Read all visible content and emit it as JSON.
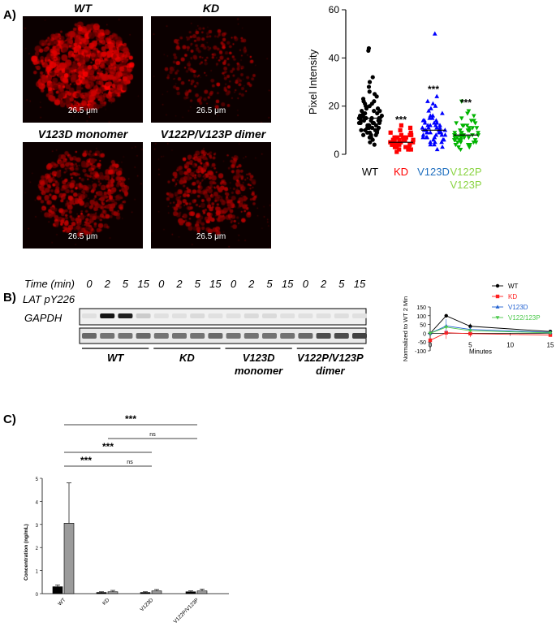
{
  "panelA": {
    "letter": "A)",
    "images": [
      {
        "title": "WT",
        "scale": "26.5 μm",
        "density": 1.0
      },
      {
        "title": "KD",
        "scale": "26.5 μm",
        "density": 0.18
      },
      {
        "title": "V123D monomer",
        "scale": "26.5 μm",
        "density": 0.55
      },
      {
        "title": "V122P/V123P dimer",
        "scale": "26.5 μm",
        "density": 0.45
      }
    ],
    "chart_data": {
      "type": "scatter",
      "ylabel": "Pixel Intensity",
      "ylim": [
        0,
        60
      ],
      "yticks": [
        0,
        20,
        40,
        60
      ],
      "groups": [
        {
          "label": "WT",
          "label2": "",
          "color": "#000000",
          "marker": "circle",
          "mean": 15,
          "sig": "",
          "n": 90,
          "values": [
            44,
            43,
            32,
            30,
            28,
            26,
            25,
            24,
            23,
            22,
            22,
            21,
            21,
            20,
            20,
            19,
            19,
            18,
            18,
            18,
            17,
            17,
            17,
            16,
            16,
            16,
            16,
            15,
            15,
            15,
            15,
            15,
            14,
            14,
            14,
            14,
            14,
            13,
            13,
            13,
            13,
            13,
            12,
            12,
            12,
            12,
            12,
            11,
            11,
            11,
            11,
            10,
            10,
            10,
            10,
            9,
            9,
            9,
            8,
            8,
            8,
            7,
            7,
            6,
            5,
            4
          ]
        },
        {
          "label": "KD",
          "label2": "",
          "color": "#ff0000",
          "marker": "square",
          "mean": 5,
          "sig": "***",
          "n": 80,
          "values": [
            12,
            11,
            10,
            9,
            9,
            8,
            8,
            8,
            7,
            7,
            7,
            7,
            6,
            6,
            6,
            6,
            6,
            6,
            5,
            5,
            5,
            5,
            5,
            5,
            5,
            5,
            5,
            4,
            4,
            4,
            4,
            4,
            4,
            4,
            3,
            3,
            3,
            3,
            3,
            2,
            2,
            2,
            1
          ]
        },
        {
          "label": "V123D",
          "label2": "",
          "color": "#0000ff",
          "marker": "triangle-up",
          "mean": 10,
          "sig": "***",
          "n": 80,
          "values": [
            50,
            24,
            22,
            21,
            20,
            19,
            18,
            17,
            16,
            16,
            15,
            15,
            14,
            14,
            14,
            13,
            13,
            13,
            12,
            12,
            12,
            12,
            11,
            11,
            11,
            11,
            10,
            10,
            10,
            10,
            10,
            9,
            9,
            9,
            9,
            9,
            8,
            8,
            8,
            8,
            7,
            7,
            7,
            7,
            6,
            6,
            6,
            5,
            5,
            5,
            4,
            4,
            3,
            2
          ]
        },
        {
          "label": "V122P",
          "label2": "V123P",
          "color": "#00b400",
          "marker": "triangle-down",
          "mean": 8,
          "sig": "***",
          "n": 80,
          "values": [
            22,
            18,
            17,
            16,
            15,
            14,
            14,
            13,
            13,
            12,
            12,
            12,
            11,
            11,
            11,
            10,
            10,
            10,
            10,
            9,
            9,
            9,
            9,
            8,
            8,
            8,
            8,
            8,
            8,
            7,
            7,
            7,
            7,
            7,
            7,
            6,
            6,
            6,
            6,
            6,
            5,
            5,
            5,
            5,
            4,
            4,
            4,
            3,
            3,
            2
          ]
        }
      ],
      "label_colors": [
        "#000000",
        "#ff0000",
        "#1f6fbf",
        "#8bd443"
      ]
    }
  },
  "panelB": {
    "letter": "B)",
    "time_label": "Time (min)",
    "times": [
      "0",
      "2",
      "5",
      "15",
      "0",
      "2",
      "5",
      "15",
      "0",
      "2",
      "5",
      "15",
      "0",
      "2",
      "5",
      "15"
    ],
    "rows": [
      "LAT pY226",
      "GAPDH"
    ],
    "groups": [
      {
        "line1": "WT",
        "line2": ""
      },
      {
        "line1": "KD",
        "line2": ""
      },
      {
        "line1": "V123D",
        "line2": "monomer"
      },
      {
        "line1": "V122P/V123P",
        "line2": "dimer"
      }
    ],
    "lat_band_intensity": [
      0.05,
      1.0,
      0.95,
      0.15,
      0.05,
      0.05,
      0.08,
      0.05,
      0.05,
      0.08,
      0.08,
      0.05,
      0.05,
      0.05,
      0.06,
      0.05
    ],
    "gapdh_band_intensity": [
      0.6,
      0.55,
      0.55,
      0.6,
      0.55,
      0.55,
      0.55,
      0.6,
      0.55,
      0.55,
      0.55,
      0.55,
      0.6,
      0.75,
      0.75,
      0.8
    ],
    "chart_data": {
      "type": "line",
      "ylabel": "Normalized to WT 2 Min",
      "xlabel": "Minutes",
      "x": [
        0,
        2,
        5,
        15
      ],
      "xticks": [
        0,
        5,
        10,
        15
      ],
      "yticks": [
        -100,
        -50,
        0,
        50,
        100,
        150
      ],
      "ylim": [
        -100,
        150
      ],
      "xlim": [
        0,
        15
      ],
      "legend_position": "top-right",
      "series": [
        {
          "name": "WT",
          "color": "#000000",
          "marker": "circle",
          "values": [
            0,
            100,
            40,
            10
          ],
          "err": [
            3,
            5,
            15,
            8
          ]
        },
        {
          "name": "KD",
          "color": "#ff2020",
          "marker": "square",
          "values": [
            -40,
            3,
            -2,
            -10
          ],
          "err": [
            10,
            35,
            20,
            8
          ]
        },
        {
          "name": "V123D",
          "color": "#1f5fd0",
          "marker": "triangle-up",
          "values": [
            0,
            42,
            22,
            5
          ],
          "err": [
            3,
            38,
            15,
            6
          ]
        },
        {
          "name": "V122/123P",
          "color": "#4cc94c",
          "marker": "triangle-down",
          "values": [
            0,
            35,
            15,
            2
          ],
          "err": [
            3,
            10,
            10,
            5
          ]
        }
      ]
    }
  },
  "panelC": {
    "letter": "C)",
    "chart_data": {
      "type": "bar",
      "ylabel": "Concentration (ng/mL)",
      "ylim": [
        0,
        5
      ],
      "yticks": [
        0,
        1,
        2,
        3,
        4,
        5
      ],
      "categories": [
        "WT",
        "KD",
        "V123D",
        "V122P/V123P"
      ],
      "series": [
        {
          "color": "#000000",
          "values": [
            0.3,
            0.05,
            0.05,
            0.08
          ],
          "err": [
            0.08,
            0.03,
            0.03,
            0.04
          ]
        },
        {
          "color": "#9b9b9b",
          "values": [
            3.05,
            0.08,
            0.12,
            0.12
          ],
          "err": [
            1.75,
            0.06,
            0.06,
            0.08
          ]
        }
      ],
      "significance": [
        {
          "from": 0,
          "to": 3,
          "label": "***"
        },
        {
          "from": 1,
          "to": 3,
          "label": "ns"
        },
        {
          "from": 0,
          "to": 2,
          "label": "***"
        },
        {
          "from": 0,
          "to": 1,
          "label": "***"
        },
        {
          "from": 1,
          "to": 2,
          "label": "ns"
        }
      ]
    }
  }
}
